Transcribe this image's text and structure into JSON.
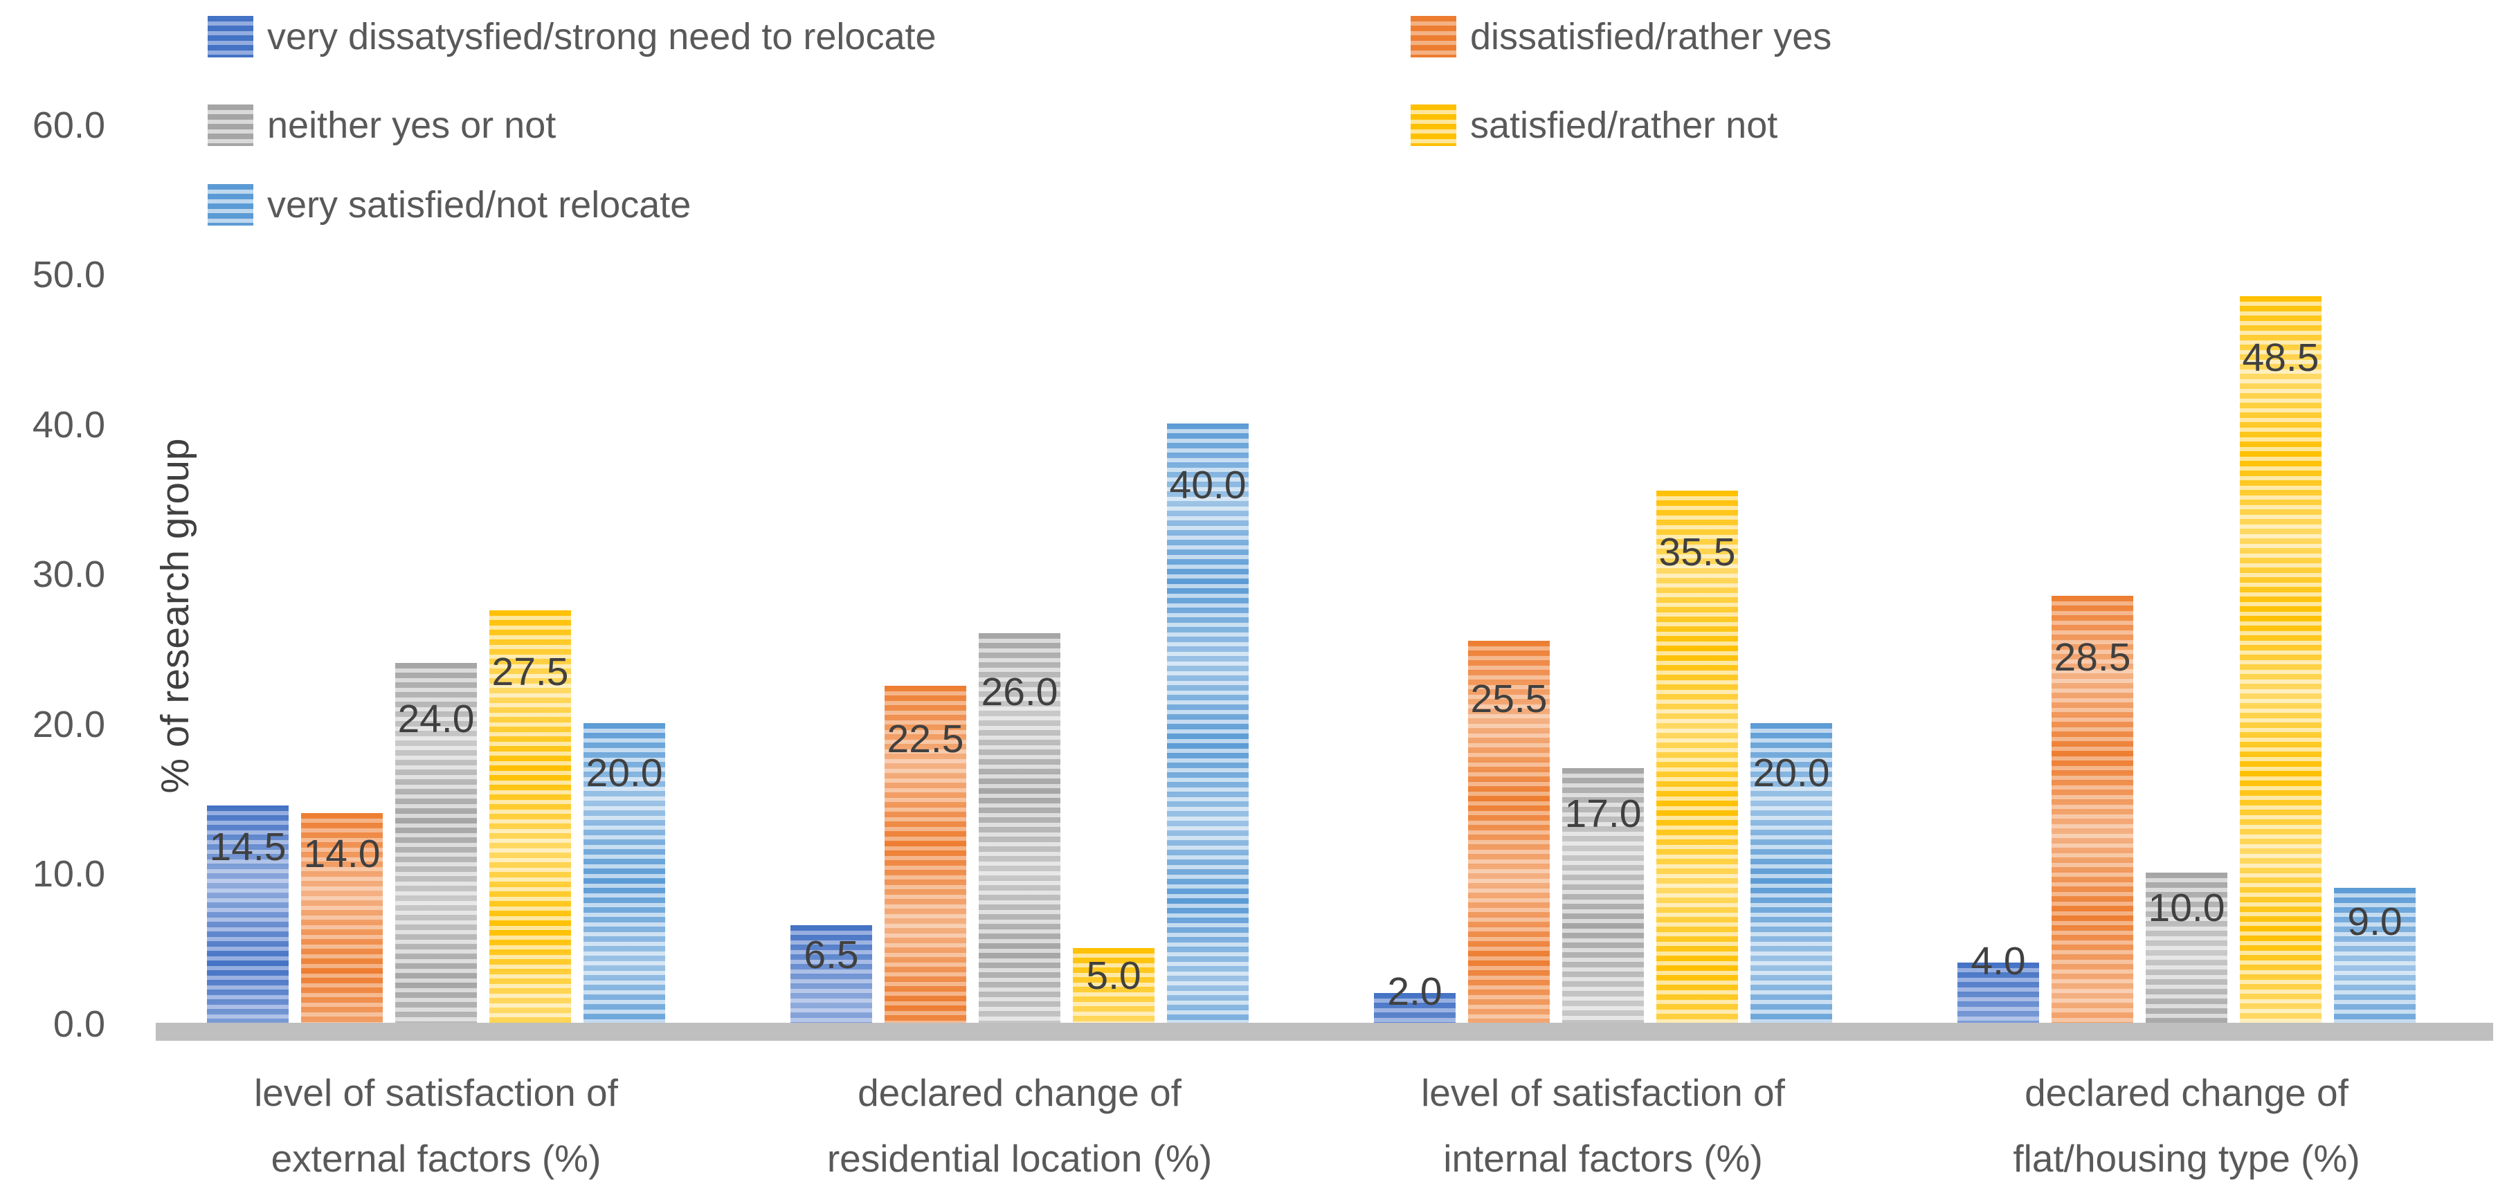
{
  "chart_data": {
    "type": "bar",
    "title": "",
    "ylabel": "% of research group",
    "xlabel": "",
    "ylim": [
      0,
      60
    ],
    "y_ticks": [
      60,
      50,
      40,
      30,
      20,
      10,
      0
    ],
    "y_tick_labels": [
      "60.0",
      "50.0",
      "40.0",
      "30.0",
      "20.0",
      "10.0",
      "0.0"
    ],
    "grid": false,
    "legend_position": "top",
    "categories": [
      "level of satisfaction of\nexternal factors (%)",
      "declared change of\nresidential location (%)",
      "level of satisfaction of\ninternal factors (%)",
      "declared change of\nflat/housing type (%)"
    ],
    "series": [
      {
        "name": "very dissatysfied/strong need to relocate",
        "color": "#4472C4",
        "light": "#93ACDF",
        "values": [
          14.5,
          6.5,
          2.0,
          4.0
        ]
      },
      {
        "name": "dissatisfied/rather yes",
        "color": "#ED7D31",
        "light": "#F4B183",
        "values": [
          14.0,
          22.5,
          25.5,
          28.5
        ]
      },
      {
        "name": "neither yes or not",
        "color": "#A5A5A5",
        "light": "#D9D9D9",
        "values": [
          24.0,
          26.0,
          17.0,
          10.0
        ]
      },
      {
        "name": "satisfied/rather not",
        "color": "#FFC000",
        "light": "#FFE699",
        "values": [
          27.5,
          5.0,
          35.5,
          48.5
        ]
      },
      {
        "name": "very satisfied/not relocate",
        "color": "#5B9BD5",
        "light": "#BDD7EE",
        "values": [
          20.0,
          40.0,
          20.0,
          9.0
        ]
      }
    ],
    "data_labels": [
      [
        "14.5",
        "6.5",
        "2.0",
        "4.0"
      ],
      [
        "14.0",
        "22.5",
        "25.5",
        "28.5"
      ],
      [
        "24.0",
        "26.0",
        "17.0",
        "10.0"
      ],
      [
        "27.5",
        "5.0",
        "35.5",
        "48.5"
      ],
      [
        "20.0",
        "40.0",
        "20.0",
        "9.0"
      ]
    ]
  },
  "colors": {
    "axis_line": "#BFBFBF",
    "tick_text": "#595959",
    "legend_text": "#595959",
    "data_label_text": "#404040"
  }
}
